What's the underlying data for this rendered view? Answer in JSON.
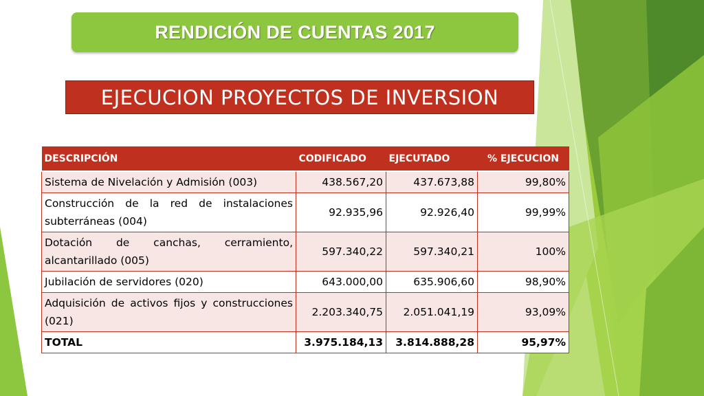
{
  "banner": {
    "title": "RENDICIÓN DE CUENTAS 2017"
  },
  "section": {
    "title": "EJECUCION PROYECTOS DE INVERSION"
  },
  "colors": {
    "accent_green": "#8dc63f",
    "accent_red": "#c0301f",
    "row_tint": "#f7e6e4"
  },
  "table": {
    "headers": [
      "DESCRIPCIÓN",
      "CODIFICADO",
      "EJECUTADO",
      "% EJECUCION"
    ],
    "rows": [
      {
        "descripcion": "Sistema de Nivelación y Admisión (003)",
        "codificado": "438.567,20",
        "ejecutado": "437.673,88",
        "ejecucion": "99,80%"
      },
      {
        "descripcion": "Construcción de la red de instalaciones subterráneas (004)",
        "codificado": "92.935,96",
        "ejecutado": "92.926,40",
        "ejecucion": "99,99%"
      },
      {
        "descripcion": "Dotación de canchas, cerramiento, alcantarillado (005)",
        "codificado": "597.340,22",
        "ejecutado": "597.340,21",
        "ejecucion": "100%"
      },
      {
        "descripcion": "Jubilación de servidores (020)",
        "codificado": "643.000,00",
        "ejecutado": "635.906,60",
        "ejecucion": "98,90%"
      },
      {
        "descripcion": "Adquisición de activos fijos y construcciones (021)",
        "codificado": "2.203.340,75",
        "ejecutado": "2.051.041,19",
        "ejecucion": "93,09%"
      }
    ],
    "total": {
      "label": "TOTAL",
      "codificado": "3.975.184,13",
      "ejecutado": "3.814.888,28",
      "ejecucion": "95,97%"
    }
  }
}
